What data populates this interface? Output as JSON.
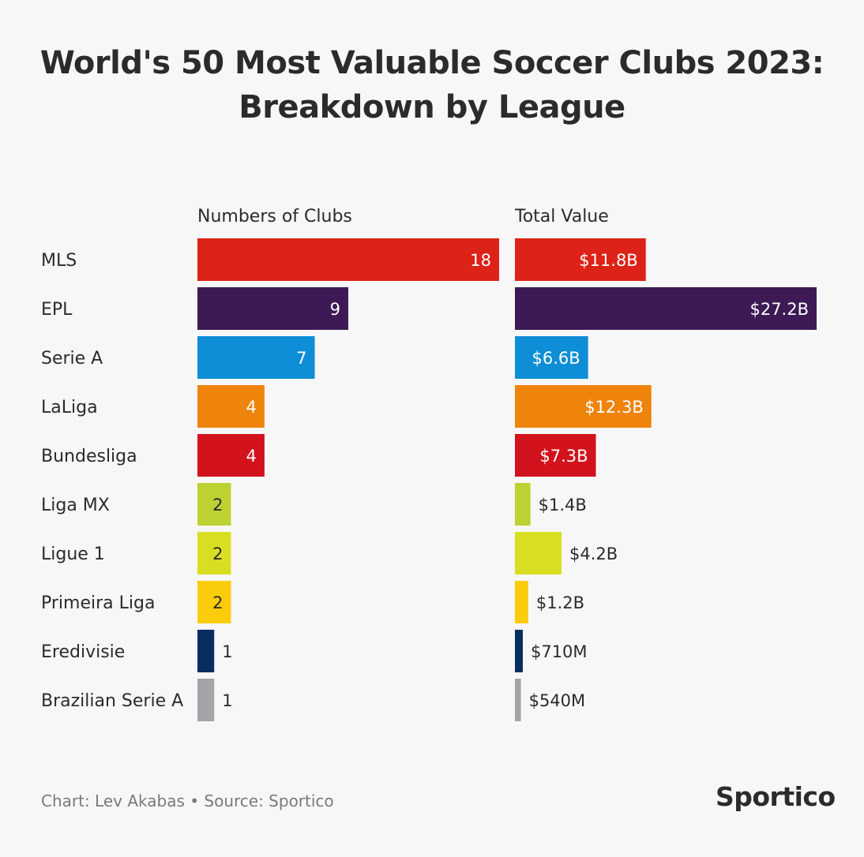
{
  "title_line1": "World's 50 Most Valuable Soccer Clubs 2023:",
  "title_line2": "Breakdown by League",
  "footer": {
    "credit": "Chart: Lev Akabas • Source: Sportico",
    "brand": "Sportico"
  },
  "chart_data": {
    "type": "bar",
    "orientation": "horizontal",
    "categories": [
      "MLS",
      "EPL",
      "Serie A",
      "LaLiga",
      "Bundesliga",
      "Liga MX",
      "Ligue 1",
      "Primeira Liga",
      "Eredivisie",
      "Brazilian Serie A"
    ],
    "colors": [
      "#dd2218",
      "#3d1a55",
      "#0e8ed6",
      "#ee840c",
      "#d2121c",
      "#bdd232",
      "#d8df22",
      "#fbcc0b",
      "#062f60",
      "#a4a4a8"
    ],
    "series": [
      {
        "name": "Numbers of Clubs",
        "values": [
          18,
          9,
          7,
          4,
          4,
          2,
          2,
          2,
          1,
          1
        ],
        "labels": [
          "18",
          "9",
          "7",
          "4",
          "4",
          "2",
          "2",
          "2",
          "1",
          "1"
        ],
        "xlim": [
          0,
          18
        ]
      },
      {
        "name": "Total Value",
        "values": [
          11.8,
          27.2,
          6.6,
          12.3,
          7.3,
          1.4,
          4.2,
          1.2,
          0.71,
          0.54
        ],
        "labels": [
          "$11.8B",
          "$27.2B",
          "$6.6B",
          "$12.3B",
          "$7.3B",
          "$1.4B",
          "$4.2B",
          "$1.2B",
          "$710M",
          "$540M"
        ],
        "unit": "$B",
        "xlim": [
          0,
          27.2
        ]
      }
    ]
  }
}
